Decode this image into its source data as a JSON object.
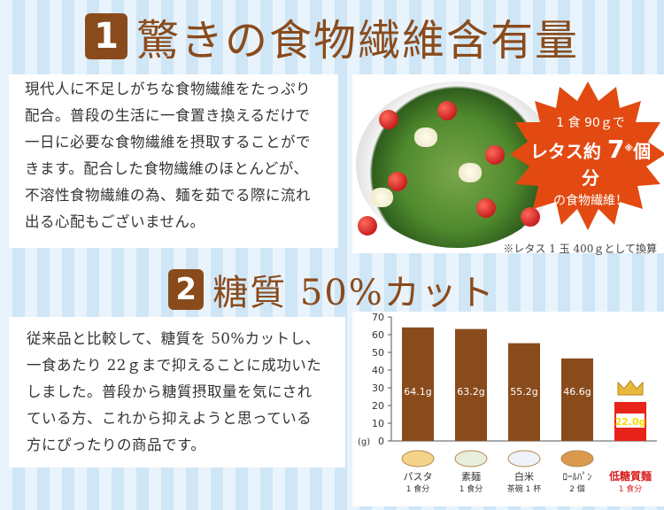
{
  "section1": {
    "number": "1",
    "title": "驚きの食物繊維含有量",
    "lines": [
      "現代人に不足しがちな食物繊維をたっぷり",
      "配合。普段の生活に一食置き換えるだけで",
      "一日に必要な食物繊維を摂取することがで",
      "きます。配合した食物繊維のほとんどが、",
      "不溶性食物繊維の為、麺を茹でる際に流れ",
      "出る心配もございません。"
    ],
    "burst": {
      "line1": "1 食 90ｇで",
      "line2_prefix": "レタス約",
      "line2_num": "7",
      "line2_suffix": "個分",
      "mark": "※",
      "line3": "の食物繊維！"
    },
    "footnote": "※レタス 1 玉 400ｇとして換算"
  },
  "section2": {
    "number": "2",
    "title": "糖質 50%カット",
    "lines": [
      "従来品と比較して、糖質を 50%カットし、",
      "一食あたり 22ｇまで抑えることに成功いた",
      "しました。普段から糖質摂取量を気にされ",
      "ている方、これから抑えようと思っている",
      "方にぴったりの商品です。"
    ]
  },
  "chart_data": {
    "type": "bar",
    "unit_label": "(g)",
    "ylim": [
      0,
      70
    ],
    "yticks": [
      0,
      10,
      20,
      30,
      40,
      50,
      60,
      70
    ],
    "categories": [
      {
        "name": "パスタ",
        "sub": "1 食分"
      },
      {
        "name": "素麺",
        "sub": "1 食分"
      },
      {
        "name": "白米",
        "sub": "茶碗 1 杯"
      },
      {
        "name": "ﾛｰﾙﾊﾟﾝ",
        "sub": "2 個"
      },
      {
        "name": "低糖質麺",
        "sub": "1 食分"
      }
    ],
    "values": [
      64.1,
      63.2,
      55.2,
      46.6,
      22.0
    ],
    "labels": [
      "64.1g",
      "63.2g",
      "55.2g",
      "46.6g",
      "22.0g"
    ],
    "colors": {
      "bar": "#8a4b1c",
      "highlight": "#e8231a",
      "highlight_label": "#f5e000"
    }
  }
}
